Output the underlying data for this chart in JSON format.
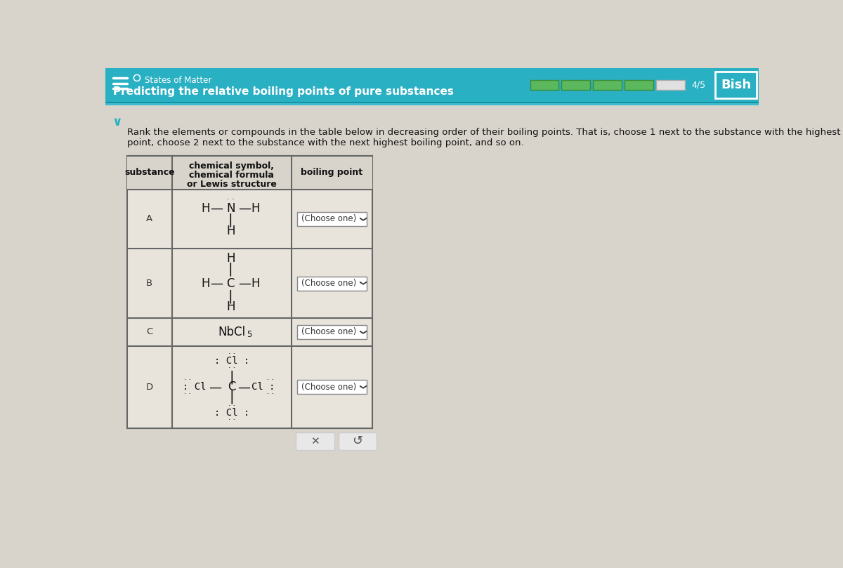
{
  "bg_color": "#d8d4cc",
  "header_bg": "#29b0c3",
  "title_text": "States of Matter",
  "subtitle_text": "Predicting the relative boiling points of pure substances",
  "page_indicator": "4/5",
  "user_name": "Bish",
  "instruction_line1": "Rank the elements or compounds in the table below in decreasing order of their boiling points. That is, choose 1 next to the substance with the highest boiling",
  "instruction_line2": "point, choose 2 next to the substance with the next highest boiling point, and so on.",
  "table_bg": "#e8e4dc",
  "table_border": "#666666",
  "header_row_bg": "#d8d4cc",
  "rows": [
    "A",
    "B",
    "C",
    "D"
  ],
  "progress_filled": 4,
  "progress_total": 5,
  "progress_color_filled": "#5cb85c",
  "progress_color_empty": "#e0e0e0",
  "white_bg": "#f5f2ee"
}
